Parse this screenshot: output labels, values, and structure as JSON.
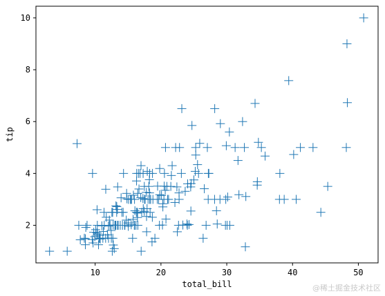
{
  "chart_data": {
    "type": "scatter",
    "xlabel": "total_bill",
    "ylabel": "tip",
    "xlim": [
      1.0,
      53.0
    ],
    "ylim": [
      0.55,
      10.45
    ],
    "xticks": [
      10,
      20,
      30,
      40,
      50
    ],
    "yticks": [
      2,
      4,
      6,
      8,
      10
    ],
    "marker": "+",
    "marker_color": "#1f77b4",
    "grid": false,
    "x": [
      3.07,
      5.75,
      7.25,
      7.51,
      7.74,
      8.35,
      8.51,
      8.52,
      8.58,
      8.77,
      9.55,
      9.6,
      9.68,
      9.78,
      9.94,
      10.07,
      10.27,
      10.29,
      10.33,
      10.34,
      10.51,
      10.59,
      10.63,
      10.65,
      10.77,
      11.02,
      11.17,
      11.24,
      11.35,
      11.38,
      11.59,
      11.61,
      11.69,
      11.87,
      12.02,
      12.03,
      12.16,
      12.26,
      12.43,
      12.46,
      12.54,
      12.6,
      12.66,
      12.69,
      12.74,
      12.76,
      12.9,
      13.0,
      13.03,
      13.13,
      13.16,
      13.27,
      13.28,
      13.37,
      13.39,
      13.42,
      13.51,
      13.81,
      13.94,
      14.07,
      14.15,
      14.26,
      14.31,
      14.48,
      14.52,
      14.73,
      14.78,
      14.83,
      15.01,
      15.04,
      15.06,
      15.36,
      15.38,
      15.42,
      15.48,
      15.53,
      15.69,
      15.77,
      15.81,
      15.95,
      15.98,
      16.0,
      16.04,
      16.21,
      16.27,
      16.29,
      16.31,
      16.4,
      16.43,
      16.45,
      16.47,
      16.49,
      16.58,
      16.66,
      16.82,
      16.93,
      16.97,
      16.99,
      17.07,
      17.26,
      17.29,
      17.31,
      17.46,
      17.47,
      17.51,
      17.59,
      17.78,
      17.81,
      17.82,
      17.89,
      17.92,
      18.04,
      18.15,
      18.24,
      18.26,
      18.28,
      18.29,
      18.35,
      18.43,
      18.64,
      18.69,
      18.71,
      18.78,
      19.08,
      19.44,
      19.49,
      19.65,
      19.77,
      19.81,
      19.82,
      20.08,
      20.23,
      20.27,
      20.29,
      20.45,
      20.49,
      20.53,
      20.65,
      20.69,
      20.76,
      20.9,
      21.01,
      21.16,
      21.5,
      21.58,
      21.7,
      22.12,
      22.23,
      22.42,
      22.49,
      22.67,
      22.75,
      22.76,
      22.82,
      23.1,
      23.17,
      23.33,
      23.68,
      23.95,
      24.01,
      24.06,
      24.27,
      24.52,
      24.55,
      24.59,
      24.71,
      25.0,
      25.21,
      25.28,
      25.29,
      25.56,
      25.71,
      25.89,
      26.41,
      26.59,
      26.86,
      27.05,
      27.18,
      27.2,
      27.28,
      28.15,
      28.17,
      28.44,
      28.55,
      28.97,
      29.03,
      29.8,
      29.85,
      29.93,
      30.06,
      30.14,
      30.4,
      30.46,
      31.27,
      31.71,
      31.85,
      32.4,
      32.68,
      32.83,
      32.9,
      34.3,
      34.63,
      34.65,
      34.81,
      35.26,
      35.83,
      38.01,
      38.07,
      38.73,
      39.42,
      40.17,
      40.55,
      41.19,
      43.11,
      44.3,
      45.35,
      48.17,
      48.27,
      48.33,
      50.81
    ],
    "y": [
      1.0,
      1.0,
      5.15,
      2.0,
      1.44,
      1.5,
      1.25,
      1.48,
      1.92,
      2.0,
      1.45,
      4.0,
      1.32,
      1.73,
      1.56,
      1.83,
      1.71,
      2.6,
      2.0,
      1.66,
      1.25,
      1.61,
      1.5,
      1.5,
      1.47,
      1.98,
      1.5,
      1.76,
      2.5,
      2.0,
      1.5,
      3.39,
      2.31,
      1.63,
      1.97,
      1.5,
      2.2,
      2.0,
      1.8,
      1.5,
      2.5,
      1.0,
      2.5,
      1.5,
      2.01,
      1.24,
      1.1,
      2.0,
      2.0,
      2.0,
      2.75,
      2.5,
      2.72,
      2.0,
      2.61,
      3.48,
      2.0,
      2.0,
      3.06,
      2.5,
      2.0,
      2.5,
      4.0,
      2.0,
      2.0,
      2.2,
      3.23,
      3.02,
      2.09,
      1.96,
      3.0,
      3.0,
      3.0,
      3.0,
      2.02,
      3.0,
      1.5,
      2.23,
      3.16,
      2.0,
      3.0,
      2.0,
      2.56,
      2.0,
      2.5,
      3.71,
      4.0,
      2.5,
      2.3,
      2.47,
      3.23,
      2.0,
      4.0,
      3.4,
      4.0,
      3.07,
      4.3,
      1.0,
      2.5,
      3.03,
      4.0,
      2.64,
      2.54,
      3.5,
      3.0,
      3.0,
      3.27,
      2.34,
      1.75,
      2.64,
      4.08,
      3.0,
      3.5,
      3.76,
      3.25,
      4.0,
      3.0,
      2.5,
      3.0,
      1.36,
      2.31,
      4.0,
      3.0,
      1.5,
      3.0,
      3.51,
      3.0,
      2.0,
      4.19,
      3.18,
      3.15,
      2.01,
      2.83,
      2.71,
      3.0,
      3.51,
      4.0,
      3.35,
      5.0,
      2.24,
      3.5,
      3.0,
      3.0,
      3.5,
      3.92,
      4.3,
      2.88,
      5.0,
      3.48,
      1.75,
      2.0,
      3.25,
      3.0,
      5.0,
      4.0,
      6.5,
      2.01,
      3.31,
      2.05,
      2.0,
      3.6,
      2.03,
      3.48,
      2.55,
      3.61,
      5.85,
      3.75,
      4.08,
      5.0,
      4.71,
      4.34,
      4.0,
      5.16,
      1.5,
      3.41,
      2.0,
      5.0,
      3.0,
      4.0,
      4.0,
      3.0,
      6.5,
      2.56,
      2.05,
      3.0,
      5.92,
      2.0,
      3.0,
      5.07,
      2.0,
      3.09,
      5.6,
      2.0,
      5.0,
      4.5,
      3.18,
      6.0,
      5.0,
      1.17,
      3.11,
      6.7,
      3.55,
      3.68,
      5.2,
      5.0,
      4.67,
      3.0,
      4.0,
      3.0,
      7.58,
      4.73,
      3.0,
      5.0,
      5.0,
      2.5,
      3.5,
      5.0,
      9.0,
      6.73,
      10.0
    ]
  },
  "watermark": "@稀土掘金技术社区"
}
